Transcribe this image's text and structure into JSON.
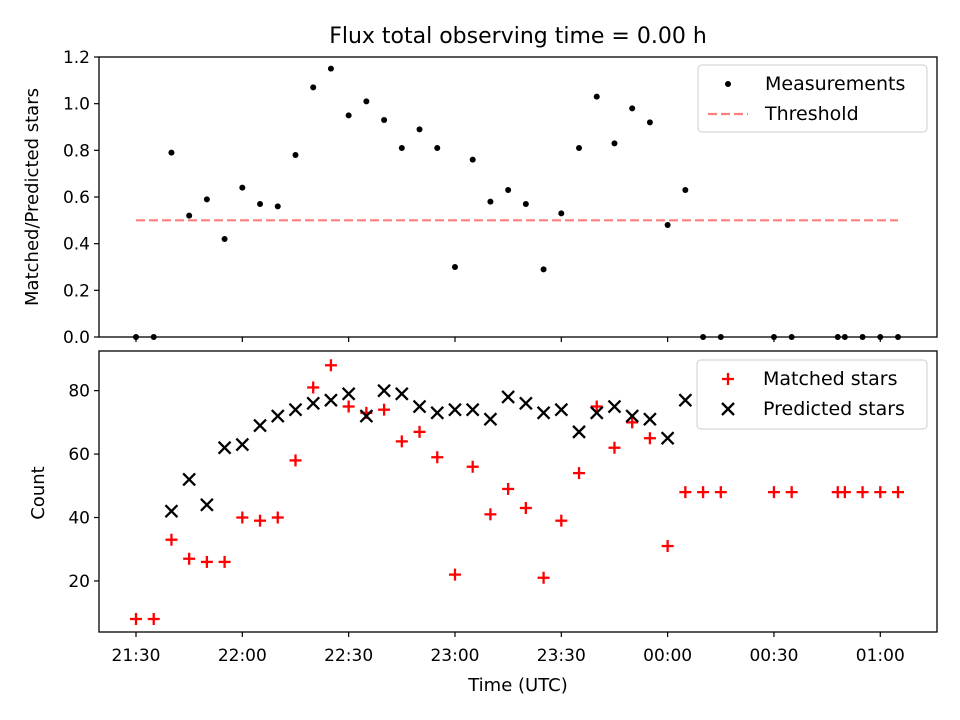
{
  "chart_data": [
    {
      "type": "scatter",
      "title": "Flux total observing time = 0.00 h",
      "xlabel": "",
      "ylabel": "Matched/Predicted stars",
      "ylim": [
        0,
        1.2
      ],
      "yticks": [
        "0.0",
        "0.2",
        "0.4",
        "0.6",
        "0.8",
        "1.0",
        "1.2"
      ],
      "legend_position": "top-right",
      "series": [
        {
          "name": "Measurements",
          "kind": "dot",
          "color": "#000000",
          "x": [
            "21:30",
            "21:35",
            "21:40",
            "21:45",
            "21:50",
            "21:55",
            "22:00",
            "22:05",
            "22:10",
            "22:15",
            "22:20",
            "22:25",
            "22:30",
            "22:35",
            "22:40",
            "22:45",
            "22:50",
            "22:55",
            "23:00",
            "23:05",
            "23:10",
            "23:15",
            "23:20",
            "23:25",
            "23:30",
            "23:35",
            "23:40",
            "23:45",
            "23:50",
            "23:55",
            "00:00",
            "00:05",
            "00:10",
            "00:15",
            "00:30",
            "00:35",
            "00:48",
            "00:50",
            "00:55",
            "01:00",
            "01:05"
          ],
          "y": [
            0.0,
            0.0,
            0.79,
            0.52,
            0.59,
            0.42,
            0.64,
            0.57,
            0.56,
            0.78,
            1.07,
            1.15,
            0.95,
            1.01,
            0.93,
            0.81,
            0.89,
            0.81,
            0.3,
            0.76,
            0.58,
            0.63,
            0.57,
            0.29,
            0.53,
            0.81,
            1.03,
            0.83,
            0.98,
            0.92,
            0.48,
            0.63,
            0.0,
            0.0,
            0.0,
            0.0,
            0.0,
            0.0,
            0.0,
            0.0,
            0.0
          ]
        },
        {
          "name": "Threshold",
          "kind": "dashed-line",
          "color": "#ff7f7f",
          "x": [
            "21:30",
            "01:05"
          ],
          "y": [
            0.5,
            0.5
          ]
        }
      ]
    },
    {
      "type": "scatter",
      "title": "",
      "xlabel": "Time (UTC)",
      "ylabel": "Count",
      "ylim": [
        3.9,
        92.5
      ],
      "yticks": [
        "20",
        "40",
        "60",
        "80"
      ],
      "xticks": [
        "21:30",
        "22:00",
        "22:30",
        "23:00",
        "23:30",
        "00:00",
        "00:30",
        "01:00"
      ],
      "legend_position": "top-right",
      "series": [
        {
          "name": "Matched stars",
          "kind": "plus",
          "color": "#ff0000",
          "x": [
            "21:30",
            "21:35",
            "21:40",
            "21:45",
            "21:50",
            "21:55",
            "22:00",
            "22:05",
            "22:10",
            "22:15",
            "22:20",
            "22:25",
            "22:30",
            "22:35",
            "22:40",
            "22:45",
            "22:50",
            "22:55",
            "23:00",
            "23:05",
            "23:10",
            "23:15",
            "23:20",
            "23:25",
            "23:30",
            "23:35",
            "23:40",
            "23:45",
            "23:50",
            "23:55",
            "00:00",
            "00:05",
            "00:10",
            "00:15",
            "00:30",
            "00:35",
            "00:48",
            "00:50",
            "00:55",
            "01:00",
            "01:05"
          ],
          "y": [
            8,
            8,
            33,
            27,
            26,
            26,
            40,
            39,
            40,
            58,
            81,
            88,
            75,
            73,
            74,
            64,
            67,
            59,
            22,
            56,
            41,
            49,
            43,
            21,
            39,
            54,
            75,
            62,
            70,
            65,
            31,
            48,
            48,
            48,
            48,
            48,
            48,
            48,
            48,
            48,
            48
          ]
        },
        {
          "name": "Predicted stars",
          "kind": "x",
          "color": "#000000",
          "x": [
            "21:40",
            "21:45",
            "21:50",
            "21:55",
            "22:00",
            "22:05",
            "22:10",
            "22:15",
            "22:20",
            "22:25",
            "22:30",
            "22:35",
            "22:40",
            "22:45",
            "22:50",
            "22:55",
            "23:00",
            "23:05",
            "23:10",
            "23:15",
            "23:20",
            "23:25",
            "23:30",
            "23:35",
            "23:40",
            "23:45",
            "23:50",
            "23:55",
            "00:00",
            "00:05"
          ],
          "y": [
            42,
            52,
            44,
            62,
            63,
            69,
            72,
            74,
            76,
            77,
            79,
            72,
            80,
            79,
            75,
            73,
            74,
            74,
            71,
            78,
            76,
            73,
            74,
            67,
            73,
            75,
            72,
            71,
            65,
            77
          ]
        }
      ]
    }
  ]
}
